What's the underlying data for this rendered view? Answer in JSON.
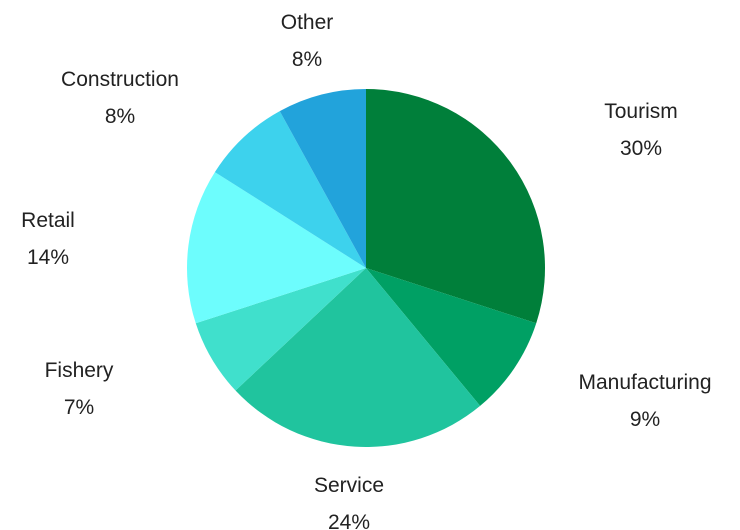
{
  "chart_data": {
    "type": "pie",
    "title": "",
    "start": "12 o'clock",
    "direction": "clockwise",
    "slices": [
      {
        "label": "Tourism",
        "value": 30,
        "value_label": "30%",
        "color": "#007f3a"
      },
      {
        "label": "Manufacturing",
        "value": 9,
        "value_label": "9%",
        "color": "#00a064"
      },
      {
        "label": "Service",
        "value": 24,
        "value_label": "24%",
        "color": "#20c49e"
      },
      {
        "label": "Fishery",
        "value": 7,
        "value_label": "7%",
        "color": "#40e0cc"
      },
      {
        "label": "Retail",
        "value": 14,
        "value_label": "14%",
        "color": "#6dfdfd"
      },
      {
        "label": "Construction",
        "value": 8,
        "value_label": "8%",
        "color": "#3dd2ed"
      },
      {
        "label": "Other",
        "value": 8,
        "value_label": "8%",
        "color": "#22a3db"
      }
    ]
  }
}
